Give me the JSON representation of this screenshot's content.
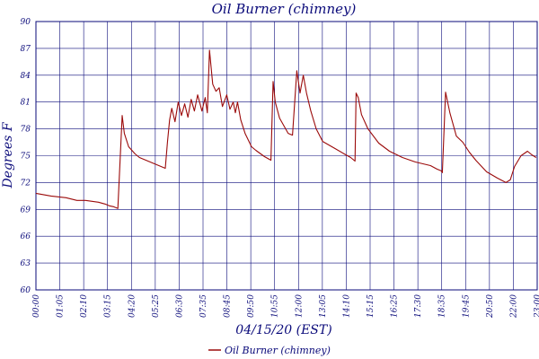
{
  "chart_data": {
    "type": "line",
    "title": "Oil Burner (chimney)",
    "xlabel": "04/15/20 (EST)",
    "ylabel": "Degrees F",
    "y_tick_labels": [
      "60",
      "63",
      "66",
      "69",
      "72",
      "75",
      "78",
      "81",
      "84",
      "87",
      "90"
    ],
    "x_tick_labels": [
      "00:00",
      "01:05",
      "02:10",
      "03:15",
      "04:20",
      "05:25",
      "06:30",
      "07:35",
      "08:45",
      "09:50",
      "10:55",
      "12:00",
      "13:05",
      "14:10",
      "15:15",
      "16:25",
      "17:30",
      "18:35",
      "19:45",
      "20:50",
      "22:00",
      "23:00"
    ],
    "ylim": [
      60,
      90
    ],
    "grid": true,
    "legend_position": "bottom",
    "colors": {
      "series": "#9b0a0a",
      "grid": "#0a0a7a",
      "text": "#0a0a7a"
    },
    "series": [
      {
        "name": "Oil Burner (chimney)",
        "x": [
          0,
          0.7,
          1.4,
          1.9,
          2.3,
          2.6,
          2.9,
          3.2,
          3.4,
          3.6,
          3.8,
          4.0,
          4.1,
          4.3,
          4.6,
          4.8,
          5.1,
          5.4,
          5.6,
          5.8,
          6.0,
          6.1,
          6.2,
          6.3,
          6.45,
          6.6,
          6.75,
          6.9,
          7.05,
          7.2,
          7.35,
          7.5,
          7.7,
          7.85,
          7.95,
          8.05,
          8.2,
          8.35,
          8.5,
          8.65,
          8.85,
          9.0,
          9.15,
          9.25,
          9.35,
          9.5,
          9.7,
          10.0,
          10.2,
          10.6,
          10.9,
          11.0,
          11.1,
          11.3,
          11.7,
          11.9,
          12.1,
          12.25,
          12.4,
          12.55,
          12.75,
          13.0,
          13.3,
          13.8,
          14.3,
          14.6,
          14.8,
          14.85,
          14.95,
          15.1,
          15.4,
          15.9,
          16.4,
          17.0,
          17.6,
          18.3,
          18.6,
          18.8,
          18.85,
          19.0,
          19.2,
          19.5,
          19.8,
          20.1,
          20.4,
          20.9,
          21.4,
          21.8,
          22.0,
          22.2,
          22.5,
          22.8,
          23.0,
          23.2
        ],
        "y": [
          70.8,
          70.5,
          70.3,
          70.0,
          70.0,
          69.9,
          69.8,
          69.6,
          69.4,
          69.3,
          69.1,
          79.5,
          77.5,
          76.0,
          75.2,
          74.8,
          74.5,
          74.2,
          74.0,
          73.8,
          73.6,
          76.5,
          79.0,
          80.3,
          78.8,
          81.0,
          79.5,
          80.8,
          79.3,
          81.3,
          80.0,
          81.8,
          80.0,
          81.5,
          79.8,
          86.8,
          83.0,
          82.2,
          82.6,
          80.5,
          81.8,
          80.2,
          81.0,
          79.8,
          81.0,
          79.0,
          77.5,
          76.0,
          75.6,
          74.9,
          74.5,
          83.3,
          81.0,
          79.2,
          77.5,
          77.3,
          84.5,
          82.0,
          84.0,
          82.0,
          80.0,
          78.0,
          76.6,
          75.9,
          75.2,
          74.8,
          74.4,
          82.0,
          81.5,
          79.6,
          78.0,
          76.4,
          75.5,
          74.8,
          74.3,
          73.9,
          73.5,
          73.3,
          73.1,
          82.1,
          79.8,
          77.2,
          76.5,
          75.4,
          74.5,
          73.2,
          72.5,
          72.0,
          72.3,
          73.8,
          75.0,
          75.5,
          75.1,
          74.8
        ]
      }
    ]
  }
}
